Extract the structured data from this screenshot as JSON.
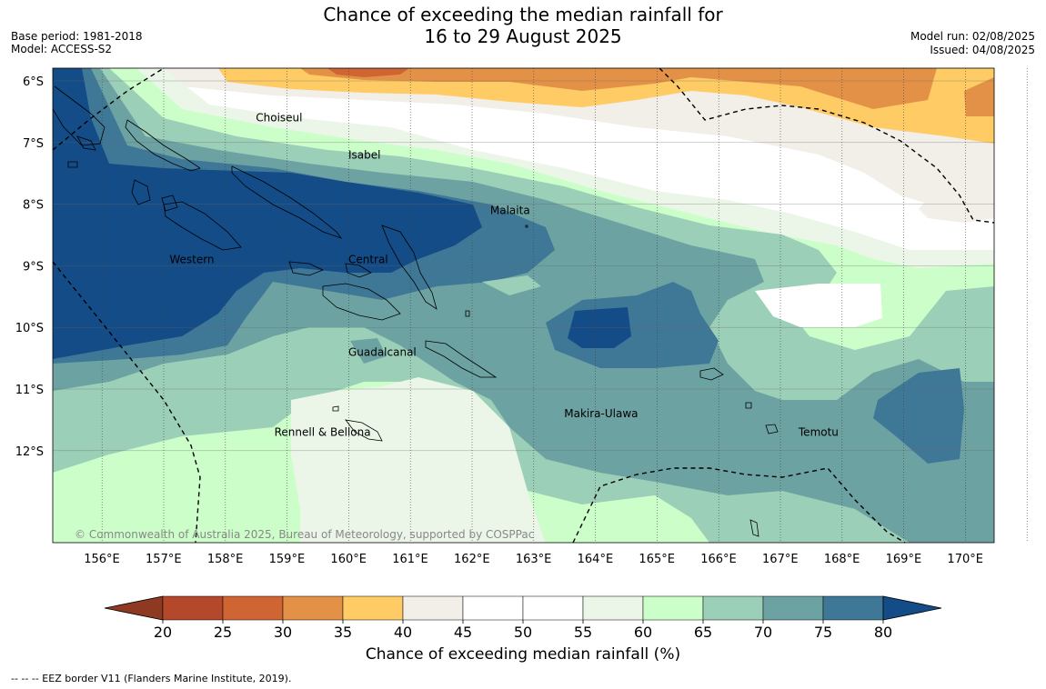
{
  "title": {
    "line1": "Chance of exceeding the median rainfall for",
    "line2": "16 to 29 August 2025"
  },
  "meta": {
    "base_period": "Base period: 1981-2018",
    "model": "Model: ACCESS-S2",
    "model_run": "Model run: 02/08/2025",
    "issued": "Issued: 04/08/2025"
  },
  "map": {
    "lat_labels": [
      "6°S",
      "7°S",
      "8°S",
      "9°S",
      "10°S",
      "11°S",
      "12°S"
    ],
    "lon_labels": [
      "156°E",
      "157°E",
      "158°E",
      "159°E",
      "160°E",
      "161°E",
      "162°E",
      "163°E",
      "164°E",
      "165°E",
      "166°E",
      "167°E",
      "168°E",
      "169°E",
      "170°E"
    ],
    "lat_values": [
      -6,
      -7,
      -8,
      -9,
      -10,
      -11,
      -12
    ],
    "lon_values": [
      156,
      157,
      158,
      159,
      160,
      161,
      162,
      163,
      164,
      165,
      166,
      167,
      168,
      169,
      170
    ],
    "provinces": [
      {
        "name": "Choiseul",
        "lon": 157.7,
        "lat": -6.6
      },
      {
        "name": "Isabel",
        "lon": 159.2,
        "lat": -7.2
      },
      {
        "name": "Malaita",
        "lon": 161.5,
        "lat": -8.1
      },
      {
        "name": "Western",
        "lon": 156.3,
        "lat": -8.9
      },
      {
        "name": "Central",
        "lon": 159.2,
        "lat": -8.9
      },
      {
        "name": "Guadalcanal",
        "lon": 159.2,
        "lat": -10.4
      },
      {
        "name": "Makira-Ulawa",
        "lon": 162.7,
        "lat": -11.4
      },
      {
        "name": "Rennell & Bellona",
        "lon": 158.0,
        "lat": -11.7
      },
      {
        "name": "Temotu",
        "lon": 166.5,
        "lat": -11.7
      }
    ],
    "copyright": "© Commonwealth of Australia 2025, Bureau of Meteorology, supported by COSPPac"
  },
  "colorbar": {
    "label": "Chance of exceeding median rainfall (%)",
    "ticks": [
      "20",
      "25",
      "30",
      "35",
      "40",
      "45",
      "50",
      "55",
      "60",
      "65",
      "70",
      "75",
      "80"
    ],
    "colors": {
      "below20": "#8e3a22",
      "c20_25": "#b3482a",
      "c25_30": "#cf6532",
      "c30_35": "#e39147",
      "c35_40": "#fecb65",
      "c40_45": "#f2eee8",
      "c45_50": "#ffffff",
      "c50_55": "#ffffff",
      "c55_60": "#ebf6e9",
      "c60_65": "#ccfec9",
      "c65_70": "#9ccfb7",
      "c70_75": "#6da2a2",
      "c75_80": "#3f7896",
      "above80": "#134c87"
    }
  },
  "eez_note": "--  --  -- EEZ border V11 (Flanders Marine Institute, 2019)."
}
